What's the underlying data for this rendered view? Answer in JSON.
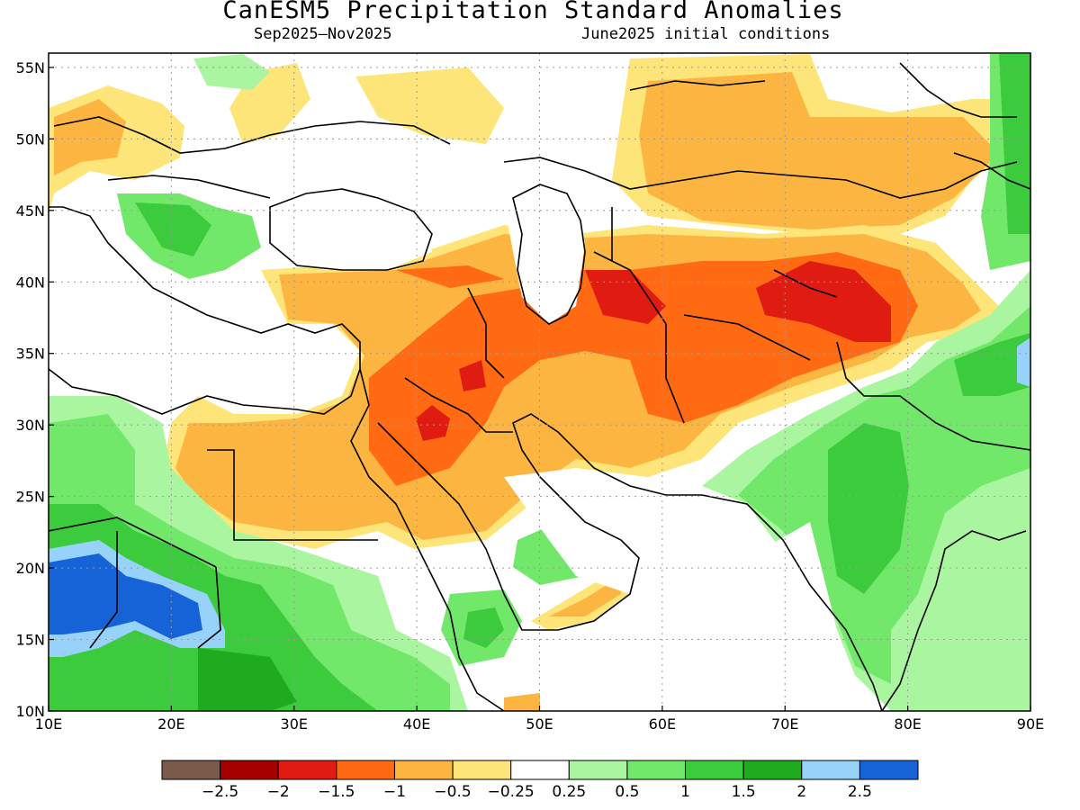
{
  "title": "CanESM5 Precipitation Standard Anomalies",
  "period": "Sep2025—Nov2025",
  "initial_conditions": "June2025 initial conditions",
  "map": {
    "lon_range": [
      10,
      90
    ],
    "lat_range": [
      10,
      56
    ],
    "lon_ticks": [
      "10E",
      "20E",
      "30E",
      "40E",
      "50E",
      "60E",
      "70E",
      "80E",
      "90E"
    ],
    "lat_ticks": [
      "10N",
      "15N",
      "20N",
      "25N",
      "30N",
      "35N",
      "40N",
      "45N",
      "50N",
      "55N"
    ],
    "grid": true
  },
  "colorbar": {
    "labels": [
      "−2.5",
      "−2",
      "−1.5",
      "−1",
      "−0.5",
      "−0.25",
      "0.25",
      "0.5",
      "1",
      "1.5",
      "2",
      "2.5"
    ],
    "colors": [
      "#7b5a4a",
      "#a50000",
      "#e01b12",
      "#ff6a12",
      "#fdb541",
      "#fde57a",
      "#ffffff",
      "#aaf5a0",
      "#72e86a",
      "#3ccb3c",
      "#1fab1f",
      "#96d2fa",
      "#1663d8"
    ]
  },
  "colors": {
    "land_outline": "#000000",
    "grid": "#999999"
  }
}
